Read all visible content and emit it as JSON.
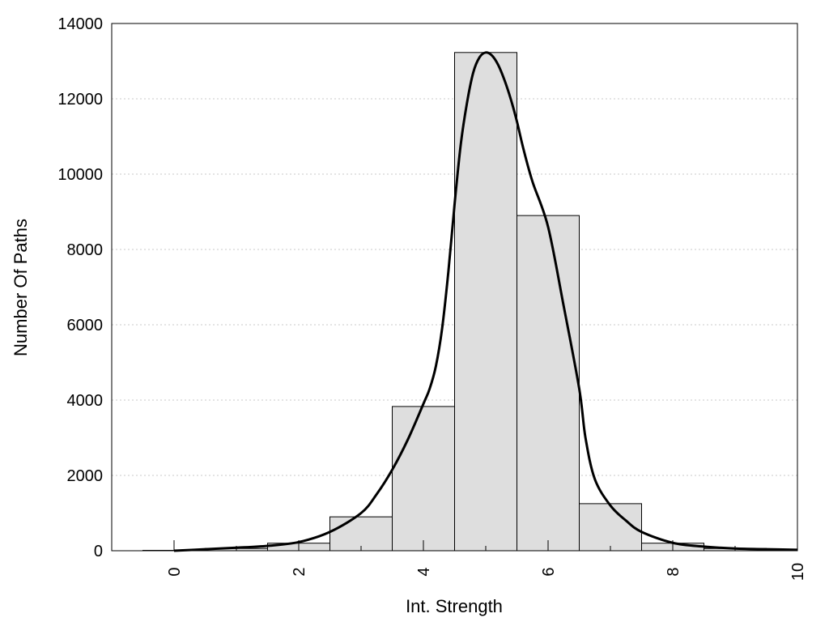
{
  "chart_data": {
    "type": "bar",
    "xlabel": "Int. Strength",
    "ylabel": "Number Of Paths",
    "xlim": [
      -1,
      10
    ],
    "ylim": [
      0,
      14000
    ],
    "x_ticks": [
      0,
      2,
      4,
      6,
      8,
      10
    ],
    "y_ticks": [
      0,
      2000,
      4000,
      6000,
      8000,
      10000,
      12000,
      14000
    ],
    "grid": "horizontal dotted",
    "bars": {
      "bin_width": 1,
      "centers": [
        0,
        1,
        2,
        3,
        4,
        5,
        6,
        7,
        8,
        9,
        10
      ],
      "values": [
        10,
        60,
        200,
        900,
        3830,
        13230,
        8900,
        1250,
        200,
        60,
        20
      ],
      "fill": "#dedede",
      "stroke": "#000000"
    },
    "curve": {
      "x": [
        0,
        0.5,
        1,
        1.5,
        2,
        2.5,
        3,
        3.25,
        3.5,
        3.75,
        4,
        4.1,
        4.2,
        4.3,
        4.4,
        4.5,
        4.6,
        4.7,
        4.8,
        4.9,
        5.0,
        5.1,
        5.2,
        5.3,
        5.4,
        5.5,
        5.6,
        5.75,
        6.0,
        6.25,
        6.5,
        6.6,
        6.75,
        7.0,
        7.25,
        7.5,
        8.0,
        8.5,
        9.0,
        9.5,
        10.0
      ],
      "y": [
        0,
        40,
        80,
        130,
        230,
        500,
        1000,
        1500,
        2150,
        2950,
        3900,
        4300,
        4900,
        5900,
        7400,
        9200,
        10800,
        11900,
        12700,
        13100,
        13230,
        13150,
        12900,
        12500,
        12000,
        11400,
        10700,
        9800,
        8600,
        6500,
        4300,
        3000,
        1900,
        1200,
        800,
        500,
        210,
        110,
        60,
        40,
        25
      ],
      "stroke": "#000000"
    }
  }
}
